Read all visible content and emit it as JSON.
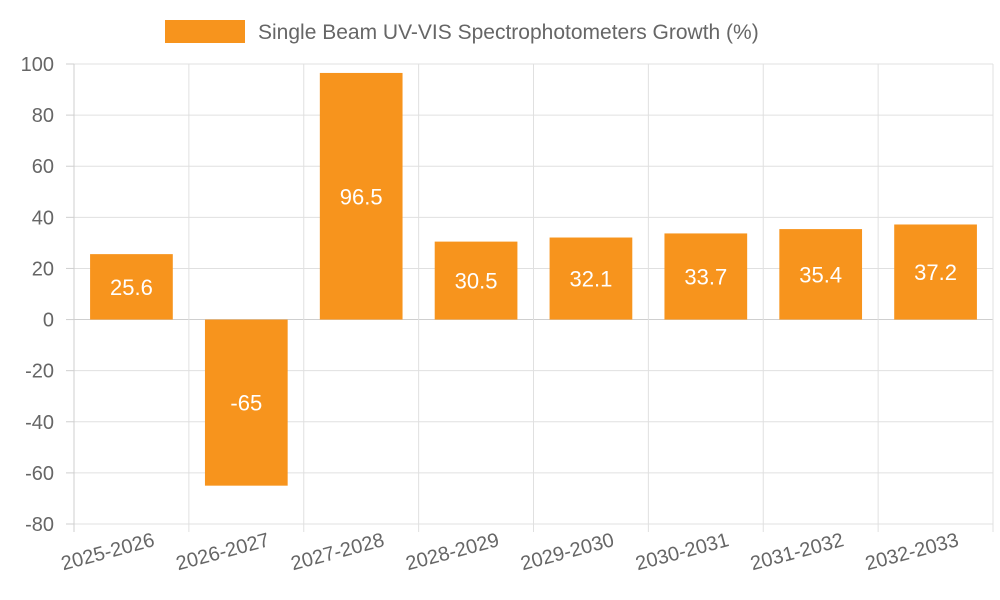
{
  "chart_data": {
    "type": "bar",
    "categories": [
      "2025-2026",
      "2026-2027",
      "2027-2028",
      "2028-2029",
      "2029-2030",
      "2030-2031",
      "2031-2032",
      "2032-2033"
    ],
    "series": [
      {
        "name": "Single Beam UV-VIS Spectrophotometers Growth (%)",
        "values": [
          25.6,
          -65,
          96.5,
          30.5,
          32.1,
          33.7,
          35.4,
          37.2
        ],
        "color": "#f7941d"
      }
    ],
    "ylim": [
      -80,
      100
    ],
    "yticks": [
      100,
      80,
      60,
      40,
      20,
      0,
      -20,
      -40,
      -60,
      -80
    ],
    "grid": true,
    "legend_position": "top",
    "data_labels": [
      "25.6",
      "-65",
      "96.5",
      "30.5",
      "32.1",
      "33.7",
      "35.4",
      "37.2"
    ]
  }
}
